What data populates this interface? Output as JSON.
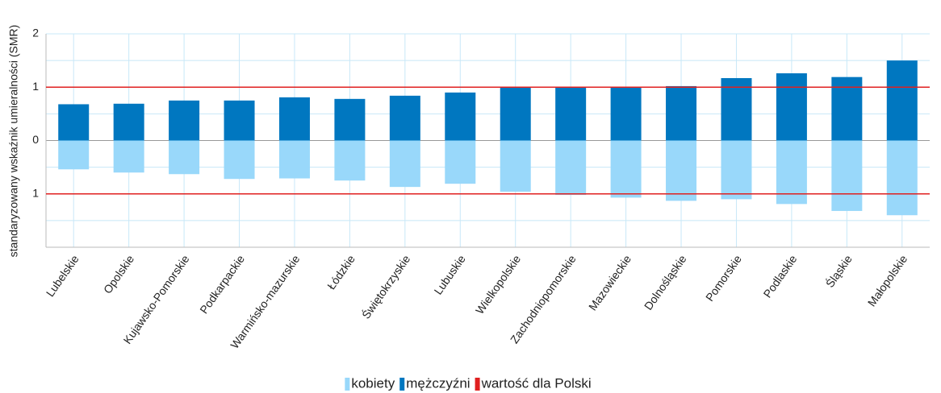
{
  "chart_data": {
    "type": "diverging_bar",
    "y_axis_label": "standaryzowany wskaźnik umieralności (SMR)",
    "categories": [
      "Lubelskie",
      "Opolskie",
      "Kujawsko-Pomorskie",
      "Podkarpackie",
      "Warmińsko-mazurskie",
      "Łódzkie",
      "Świętokrzyskie",
      "Lubuskie",
      "Wielkopolskie",
      "Zachodniopomorskie",
      "Mazowieckie",
      "Dolnośląskie",
      "Pomorskie",
      "Podlaskie",
      "Śląskie",
      "Małopolskie"
    ],
    "series": [
      {
        "name": "kobiety",
        "color": "#99d8fa",
        "values": [
          -0.54,
          -0.6,
          -0.63,
          -0.72,
          -0.71,
          -0.75,
          -0.87,
          -0.81,
          -0.96,
          -1.02,
          -1.07,
          -1.13,
          -1.1,
          -1.19,
          -1.32,
          -1.4
        ]
      },
      {
        "name": "mężczyźni",
        "color": "#0077c0",
        "values": [
          0.68,
          0.69,
          0.75,
          0.75,
          0.81,
          0.78,
          0.84,
          0.9,
          0.99,
          0.99,
          1.0,
          1.02,
          1.17,
          1.26,
          1.19,
          1.5
        ]
      }
    ],
    "reference": {
      "name": "wartość dla Polski",
      "color": "#e02020",
      "values": [
        1,
        -1
      ]
    },
    "ylim": [
      -2,
      2
    ],
    "yticks": [
      2,
      1,
      0,
      {
        "value": -1,
        "label": "1"
      }
    ],
    "minor_yticks": [
      1.5,
      0.5,
      -0.5,
      -1.5,
      -2
    ],
    "grid": true,
    "legend": "bottom"
  }
}
